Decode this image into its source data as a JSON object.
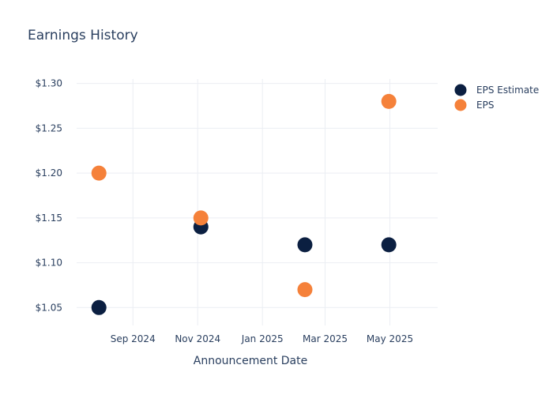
{
  "chart_data": {
    "type": "scatter",
    "title": "Earnings History",
    "xlabel": "Announcement Date",
    "ylabel": "",
    "x_axis_type": "date",
    "xlim": [
      "2024-07-10",
      "2025-06-15"
    ],
    "ylim": [
      1.03,
      1.305
    ],
    "x_tick_labels": [
      {
        "date": "2024-09-01",
        "label": "Sep 2024"
      },
      {
        "date": "2024-11-01",
        "label": "Nov 2024"
      },
      {
        "date": "2025-01-01",
        "label": "Jan 2025"
      },
      {
        "date": "2025-03-01",
        "label": "Mar 2025"
      },
      {
        "date": "2025-05-01",
        "label": "May 2025"
      }
    ],
    "y_ticks": [
      1.05,
      1.1,
      1.15,
      1.2,
      1.25,
      1.3
    ],
    "y_tick_labels": [
      "$1.05",
      "$1.10",
      "$1.15",
      "$1.20",
      "$1.25",
      "$1.30"
    ],
    "grid": true,
    "legend_position": "top-right",
    "series": [
      {
        "name": "EPS Estimate",
        "color": "#0b1f41",
        "x": [
          "2024-07-31",
          "2024-11-04",
          "2025-02-10",
          "2025-04-30"
        ],
        "y": [
          1.05,
          1.14,
          1.12,
          1.12
        ]
      },
      {
        "name": "EPS",
        "color": "#f5813a",
        "x": [
          "2024-07-31",
          "2024-11-04",
          "2025-02-10",
          "2025-04-30"
        ],
        "y": [
          1.2,
          1.15,
          1.07,
          1.28
        ]
      }
    ]
  }
}
